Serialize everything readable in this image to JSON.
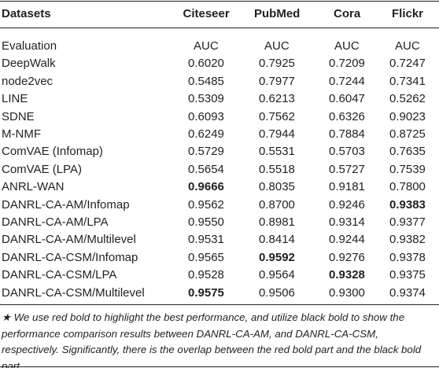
{
  "table": {
    "header": [
      "Datasets",
      "Citeseer",
      "PubMed",
      "Cora",
      "Flickr"
    ],
    "rows": [
      [
        "Evaluation",
        "AUC",
        "AUC",
        "AUC",
        "AUC"
      ],
      [
        "DeepWalk",
        "0.6020",
        "0.7925",
        "0.7209",
        "0.7247"
      ],
      [
        "node2vec",
        "0.5485",
        "0.7977",
        "0.7244",
        "0.7341"
      ],
      [
        "LINE",
        "0.5309",
        "0.6213",
        "0.6047",
        "0.5262"
      ],
      [
        "SDNE",
        "0.6093",
        "0.7562",
        "0.6326",
        "0.9023"
      ],
      [
        "M-NMF",
        "0.6249",
        "0.7944",
        "0.7884",
        "0.8725"
      ],
      [
        "ComVAE (Infomap)",
        "0.5729",
        "0.5531",
        "0.5703",
        "0.7635"
      ],
      [
        "ComVAE (LPA)",
        "0.5654",
        "0.5518",
        "0.5727",
        "0.7539"
      ],
      [
        "ANRL-WAN",
        "0.9666",
        "0.8035",
        "0.9181",
        "0.7800"
      ],
      [
        "DANRL-CA-AM/Infomap",
        "0.9562",
        "0.8700",
        "0.9246",
        "0.9383"
      ],
      [
        "DANRL-CA-AM/LPA",
        "0.9550",
        "0.8981",
        "0.9314",
        "0.9377"
      ],
      [
        "DANRL-CA-AM/Multilevel",
        "0.9531",
        "0.8414",
        "0.9244",
        "0.9382"
      ],
      [
        "DANRL-CA-CSM/Infomap",
        "0.9565",
        "0.9592",
        "0.9276",
        "0.9378"
      ],
      [
        "DANRL-CA-CSM/LPA",
        "0.9528",
        "0.9564",
        "0.9328",
        "0.9375"
      ],
      [
        "DANRL-CA-CSM/Multilevel",
        "0.9575",
        "0.9506",
        "0.9300",
        "0.9374"
      ]
    ],
    "bold_cells": [
      [
        8,
        1
      ],
      [
        14,
        1
      ],
      [
        12,
        2
      ],
      [
        13,
        3
      ],
      [
        9,
        4
      ]
    ],
    "note": "★ We use red bold to highlight the best performance, and utilize black bold to show the performance comparison results between DANRL-CA-AM, and DANRL-CA-CSM, respectively. Significantly, there is the overlap between the red bold part and the black bold part."
  }
}
